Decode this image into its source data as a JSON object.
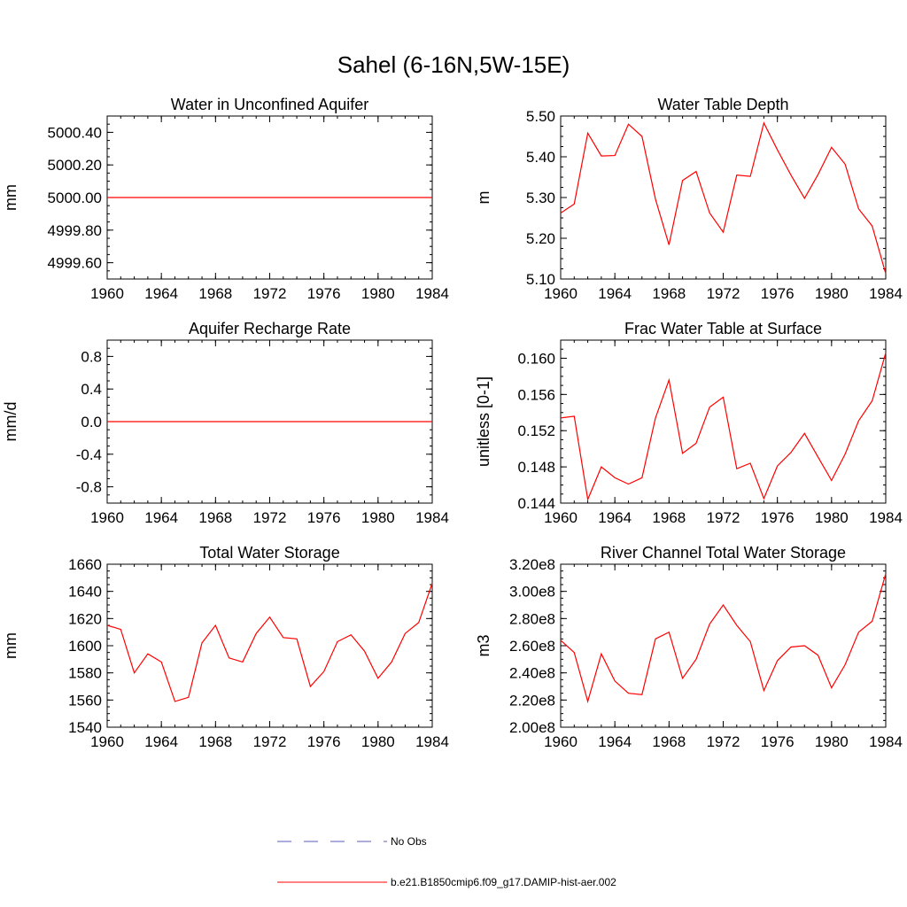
{
  "figure": {
    "title": "Sahel (6-16N,5W-15E)"
  },
  "chart_data": [
    {
      "type": "line",
      "title": "Water in Unconfined Aquifer",
      "ylabel": "mm",
      "xlim": [
        1960,
        1984
      ],
      "ylim": [
        4999.5,
        5000.5
      ],
      "xticks": [
        1960,
        1964,
        1968,
        1972,
        1976,
        1980,
        1984
      ],
      "xtick_labels": [
        "1960",
        "1964",
        "1968",
        "1972",
        "1976",
        "1980",
        "1984"
      ],
      "yticks": [
        4999.6,
        4999.8,
        5000.0,
        5000.2,
        5000.4
      ],
      "ytick_labels": [
        "4999.60",
        "4999.80",
        "5000.00",
        "5000.20",
        "5000.40"
      ],
      "x": [
        1960,
        1984
      ],
      "series": [
        {
          "name": "b.e21.B1850cmip6.f09_g17.DAMIP-hist-aer.002",
          "color": "#ff0000",
          "values": [
            5000.0,
            5000.0
          ]
        }
      ]
    },
    {
      "type": "line",
      "title": "Water Table Depth",
      "ylabel": "m",
      "xlim": [
        1960,
        1984
      ],
      "ylim": [
        5.1,
        5.5
      ],
      "xticks": [
        1960,
        1964,
        1968,
        1972,
        1976,
        1980,
        1984
      ],
      "xtick_labels": [
        "1960",
        "1964",
        "1968",
        "1972",
        "1976",
        "1980",
        "1984"
      ],
      "yticks": [
        5.1,
        5.2,
        5.3,
        5.4,
        5.5
      ],
      "ytick_labels": [
        "5.10",
        "5.20",
        "5.30",
        "5.40",
        "5.50"
      ],
      "x": [
        1960,
        1961,
        1962,
        1963,
        1964,
        1965,
        1966,
        1967,
        1968,
        1969,
        1970,
        1971,
        1972,
        1973,
        1974,
        1975,
        1976,
        1977,
        1978,
        1979,
        1980,
        1981,
        1982,
        1983,
        1984
      ],
      "series": [
        {
          "name": "b.e21.B1850cmip6.f09_g17.DAMIP-hist-aer.002",
          "color": "#ff0000",
          "values": [
            5.262,
            5.284,
            5.458,
            5.402,
            5.403,
            5.48,
            5.45,
            5.296,
            5.184,
            5.342,
            5.364,
            5.262,
            5.215,
            5.355,
            5.352,
            5.483,
            5.417,
            5.355,
            5.298,
            5.356,
            5.423,
            5.382,
            5.272,
            5.23,
            5.113
          ]
        }
      ]
    },
    {
      "type": "line",
      "title": "Aquifer Recharge Rate",
      "ylabel": "mm/d",
      "xlim": [
        1960,
        1984
      ],
      "ylim": [
        -1.0,
        1.0
      ],
      "xticks": [
        1960,
        1964,
        1968,
        1972,
        1976,
        1980,
        1984
      ],
      "xtick_labels": [
        "1960",
        "1964",
        "1968",
        "1972",
        "1976",
        "1980",
        "1984"
      ],
      "yticks": [
        -0.8,
        -0.4,
        0.0,
        0.4,
        0.8
      ],
      "ytick_labels": [
        "-0.8",
        "-0.4",
        "0.0",
        "0.4",
        "0.8"
      ],
      "x": [
        1960,
        1984
      ],
      "series": [
        {
          "name": "b.e21.B1850cmip6.f09_g17.DAMIP-hist-aer.002",
          "color": "#ff0000",
          "values": [
            0.0,
            0.0
          ]
        }
      ]
    },
    {
      "type": "line",
      "title": "Frac Water Table at Surface",
      "ylabel": "unitless [0-1]",
      "xlim": [
        1960,
        1984
      ],
      "ylim": [
        0.144,
        0.162
      ],
      "xticks": [
        1960,
        1964,
        1968,
        1972,
        1976,
        1980,
        1984
      ],
      "xtick_labels": [
        "1960",
        "1964",
        "1968",
        "1972",
        "1976",
        "1980",
        "1984"
      ],
      "yticks": [
        0.144,
        0.148,
        0.152,
        0.156,
        0.16
      ],
      "ytick_labels": [
        "0.144",
        "0.148",
        "0.152",
        "0.156",
        "0.160"
      ],
      "x": [
        1960,
        1961,
        1962,
        1963,
        1964,
        1965,
        1966,
        1967,
        1968,
        1969,
        1970,
        1971,
        1972,
        1973,
        1974,
        1975,
        1976,
        1977,
        1978,
        1979,
        1980,
        1981,
        1982,
        1983,
        1984
      ],
      "series": [
        {
          "name": "b.e21.B1850cmip6.f09_g17.DAMIP-hist-aer.002",
          "color": "#ff0000",
          "values": [
            0.1534,
            0.1536,
            0.1444,
            0.148,
            0.1468,
            0.1461,
            0.1468,
            0.1534,
            0.1576,
            0.1495,
            0.1506,
            0.1546,
            0.1557,
            0.1478,
            0.1484,
            0.1445,
            0.1481,
            0.1496,
            0.1517,
            0.1491,
            0.1465,
            0.1494,
            0.1531,
            0.1553,
            0.1606
          ]
        }
      ]
    },
    {
      "type": "line",
      "title": "Total Water Storage",
      "ylabel": "mm",
      "xlim": [
        1960,
        1984
      ],
      "ylim": [
        1540,
        1660
      ],
      "xticks": [
        1960,
        1964,
        1968,
        1972,
        1976,
        1980,
        1984
      ],
      "xtick_labels": [
        "1960",
        "1964",
        "1968",
        "1972",
        "1976",
        "1980",
        "1984"
      ],
      "yticks": [
        1540,
        1560,
        1580,
        1600,
        1620,
        1640,
        1660
      ],
      "ytick_labels": [
        "1540",
        "1560",
        "1580",
        "1600",
        "1620",
        "1640",
        "1660"
      ],
      "x": [
        1960,
        1961,
        1962,
        1963,
        1964,
        1965,
        1966,
        1967,
        1968,
        1969,
        1970,
        1971,
        1972,
        1973,
        1974,
        1975,
        1976,
        1977,
        1978,
        1979,
        1980,
        1981,
        1982,
        1983,
        1984
      ],
      "series": [
        {
          "name": "b.e21.B1850cmip6.f09_g17.DAMIP-hist-aer.002",
          "color": "#ff0000",
          "values": [
            1615,
            1612,
            1580,
            1594,
            1588,
            1559,
            1562,
            1602,
            1615,
            1591,
            1588,
            1609,
            1621,
            1606,
            1605,
            1570,
            1581,
            1603,
            1608,
            1596,
            1576,
            1588,
            1609,
            1617,
            1646
          ]
        }
      ]
    },
    {
      "type": "line",
      "title": "River Channel Total Water Storage",
      "ylabel": "m3",
      "xlim": [
        1960,
        1984
      ],
      "ylim": [
        200000000,
        320000000
      ],
      "xticks": [
        1960,
        1964,
        1968,
        1972,
        1976,
        1980,
        1984
      ],
      "xtick_labels": [
        "1960",
        "1964",
        "1968",
        "1972",
        "1976",
        "1980",
        "1984"
      ],
      "yticks": [
        200000000,
        220000000,
        240000000,
        260000000,
        280000000,
        300000000,
        320000000
      ],
      "ytick_labels": [
        "2.00e8",
        "2.20e8",
        "2.40e8",
        "2.60e8",
        "2.80e8",
        "3.00e8",
        "3.20e8"
      ],
      "x": [
        1960,
        1961,
        1962,
        1963,
        1964,
        1965,
        1966,
        1967,
        1968,
        1969,
        1970,
        1971,
        1972,
        1973,
        1974,
        1975,
        1976,
        1977,
        1978,
        1979,
        1980,
        1981,
        1982,
        1983,
        1984
      ],
      "series": [
        {
          "name": "b.e21.B1850cmip6.f09_g17.DAMIP-hist-aer.002",
          "color": "#ff0000",
          "values": [
            264000000,
            255000000,
            219000000,
            254000000,
            234000000,
            225000000,
            224000000,
            265000000,
            270000000,
            236000000,
            250000000,
            276000000,
            290000000,
            275000000,
            263000000,
            227000000,
            249000000,
            259000000,
            260000000,
            253000000,
            229000000,
            246000000,
            270000000,
            278000000,
            313000000
          ]
        }
      ]
    }
  ],
  "legend": {
    "placement": "bottom-center",
    "entries": [
      {
        "label": "No Obs",
        "color": "#5b5bb8",
        "style": "dashed"
      },
      {
        "label": "b.e21.B1850cmip6.f09_g17.DAMIP-hist-aer.002",
        "color": "#ff0000",
        "style": "solid"
      }
    ]
  }
}
